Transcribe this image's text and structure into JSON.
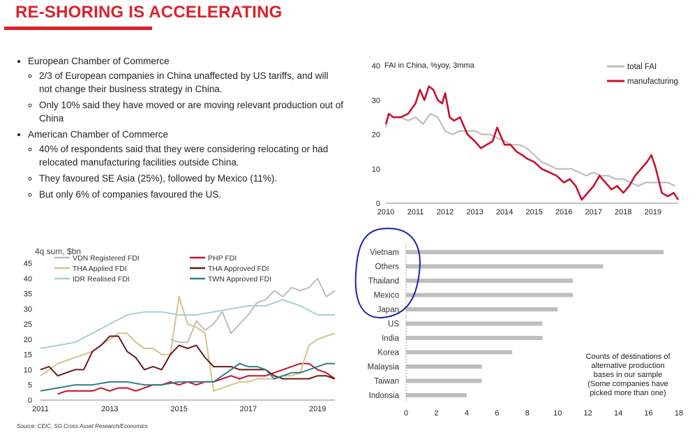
{
  "title": "RE-SHORING IS ACCELERATING",
  "bullets": [
    {
      "text": "European Chamber of Commerce",
      "sub": [
        "2/3 of European companies in China unaffected by US tariffs, and will not change their business strategy in China.",
        "Only 10% said they have moved or are moving relevant production out of China"
      ]
    },
    {
      "text": "American Chamber of Commerce",
      "sub": [
        "40% of respondents said that they were considering relocating or had relocated manufacturing facilities outside China.",
        "They favoured SE Asia (25%), followed by Mexico (11%).",
        "But only 6% of companies favoured the US."
      ]
    }
  ],
  "source": "Source: CEIC, SG Cross Asset Research/Economics",
  "colors": {
    "red": "#c8102e",
    "grey": "#bdbdbd",
    "tan": "#d4c48a",
    "darkred": "#6b1a1a",
    "lightblue": "#a9cfd4",
    "teal": "#2f7f86",
    "bar": "#bfbdbd",
    "circle": "#1626a8"
  },
  "chart_data": [
    {
      "type": "line",
      "title": "FAI in China, %yoy, 3mma",
      "x_ticks": [
        "2010",
        "2011",
        "2012",
        "2013",
        "2014",
        "2015",
        "2016",
        "2017",
        "2018",
        "2019"
      ],
      "y_ticks": [
        0,
        10,
        20,
        30,
        40
      ],
      "ylim": [
        0,
        40
      ],
      "xlim": [
        2010,
        2019.85
      ],
      "legend": [
        "total FAI",
        "manufacturing"
      ],
      "series": [
        {
          "name": "total FAI",
          "color": "#bdbdbd",
          "x": [
            2010,
            2010.1,
            2010.25,
            2010.5,
            2010.75,
            2011,
            2011.25,
            2011.5,
            2011.75,
            2012,
            2012.25,
            2012.5,
            2012.75,
            2013,
            2013.25,
            2013.5,
            2013.75,
            2014,
            2014.25,
            2014.5,
            2014.75,
            2015,
            2015.25,
            2015.5,
            2015.75,
            2016,
            2016.25,
            2016.5,
            2016.75,
            2017,
            2017.25,
            2017.5,
            2017.75,
            2018,
            2018.25,
            2018.5,
            2018.75,
            2019,
            2019.25,
            2019.5,
            2019.75
          ],
          "y": [
            22,
            26,
            25,
            25,
            24,
            25,
            23,
            26,
            25,
            21,
            20,
            21,
            21,
            21,
            20,
            20,
            19,
            18,
            17,
            17,
            16,
            14,
            12,
            11,
            10,
            10,
            10,
            9,
            8,
            9,
            8,
            8,
            7,
            7,
            6,
            5,
            6,
            6,
            6,
            6,
            5
          ]
        },
        {
          "name": "manufacturing",
          "color": "#c8102e",
          "x": [
            2010,
            2010.1,
            2010.25,
            2010.5,
            2010.75,
            2011,
            2011.15,
            2011.3,
            2011.45,
            2011.6,
            2011.75,
            2011.9,
            2012,
            2012.15,
            2012.3,
            2012.5,
            2012.75,
            2013,
            2013.2,
            2013.4,
            2013.6,
            2013.75,
            2013.9,
            2014,
            2014.2,
            2014.4,
            2014.6,
            2014.75,
            2015,
            2015.25,
            2015.5,
            2015.75,
            2016,
            2016.2,
            2016.4,
            2016.6,
            2016.8,
            2017,
            2017.2,
            2017.4,
            2017.6,
            2017.8,
            2018,
            2018.2,
            2018.4,
            2018.6,
            2018.8,
            2018.95,
            2019.1,
            2019.3,
            2019.5,
            2019.7,
            2019.85
          ],
          "y": [
            23,
            26,
            25,
            25,
            26,
            29,
            33,
            30,
            34,
            33,
            30,
            29,
            32,
            25,
            24,
            25,
            20,
            18,
            16,
            17,
            18,
            22,
            19,
            17,
            17,
            15,
            14,
            13,
            12,
            10,
            9,
            8,
            6,
            7,
            5,
            1,
            3,
            5,
            8,
            6,
            4,
            5,
            3,
            5,
            8,
            10,
            12,
            14,
            10,
            3,
            2,
            3,
            1
          ]
        }
      ]
    },
    {
      "type": "line",
      "title": "4q sum, $bn",
      "x_ticks": [
        "2011",
        "2013",
        "2015",
        "2017",
        "2019"
      ],
      "y_ticks": [
        0,
        5,
        10,
        15,
        20,
        25,
        30,
        35,
        40,
        45
      ],
      "ylim": [
        0,
        45
      ],
      "xlim": [
        2011,
        2019.5
      ],
      "legend": [
        "VDN Registered FDI",
        "PHP FDI",
        "THA Applied FDI",
        "THA Approved FDI",
        "IDR Realised FDI",
        "TWN Approved FDI"
      ],
      "series": [
        {
          "name": "VDN Registered FDI",
          "color": "#bdbdbd",
          "x": [
            2014.75,
            2015,
            2015.25,
            2015.5,
            2015.75,
            2016,
            2016.25,
            2016.5,
            2016.75,
            2017,
            2017.25,
            2017.5,
            2017.75,
            2018,
            2018.25,
            2018.5,
            2018.75,
            2019,
            2019.25,
            2019.5
          ],
          "y": [
            20,
            19,
            19,
            26,
            23,
            25,
            29,
            22,
            25,
            28,
            32,
            33,
            36,
            34,
            37,
            36,
            37,
            40,
            34,
            36
          ]
        },
        {
          "name": "PHP FDI",
          "color": "#c8102e",
          "x": [
            2011.5,
            2011.75,
            2012,
            2012.25,
            2012.5,
            2012.75,
            2013,
            2013.25,
            2013.5,
            2013.75,
            2014,
            2014.25,
            2014.5,
            2014.75,
            2015,
            2015.25,
            2015.5,
            2015.75,
            2016,
            2016.25,
            2016.5,
            2016.75,
            2017,
            2017.25,
            2017.5,
            2017.75,
            2018,
            2018.25,
            2018.5,
            2018.75,
            2019,
            2019.25,
            2019.5
          ],
          "y": [
            2,
            3,
            3,
            3,
            3,
            4,
            3,
            4,
            4,
            3,
            4,
            5,
            5,
            6,
            5,
            6,
            5,
            6,
            6,
            7,
            8,
            7,
            8,
            8,
            8,
            9,
            10,
            11,
            12,
            12,
            10,
            9,
            7
          ]
        },
        {
          "name": "THA Applied FDI",
          "color": "#d4c48a",
          "x": [
            2011,
            2011.25,
            2011.5,
            2011.75,
            2012,
            2012.25,
            2012.5,
            2012.75,
            2013,
            2013.25,
            2013.5,
            2013.75,
            2014,
            2014.25,
            2014.5,
            2014.75,
            2015,
            2015.25,
            2015.5,
            2015.75,
            2016,
            2016.25,
            2016.5,
            2016.75,
            2017,
            2017.25,
            2017.5,
            2017.75,
            2018,
            2018.25,
            2018.5,
            2018.75,
            2019,
            2019.25,
            2019.5
          ],
          "y": [
            8,
            10,
            12,
            13,
            14,
            15,
            16,
            18,
            20,
            22,
            22,
            19,
            17,
            17,
            15,
            15,
            34,
            25,
            24,
            22,
            3,
            4,
            5,
            6,
            6,
            7,
            7,
            7,
            8,
            8,
            9,
            18,
            20,
            21,
            22
          ]
        },
        {
          "name": "THA Approved FDI",
          "color": "#6b1a1a",
          "x": [
            2011,
            2011.25,
            2011.5,
            2011.75,
            2012,
            2012.25,
            2012.5,
            2012.75,
            2013,
            2013.25,
            2013.5,
            2013.75,
            2014,
            2014.25,
            2014.5,
            2014.75,
            2015,
            2015.25,
            2015.5,
            2015.75,
            2016,
            2016.25,
            2016.5,
            2016.75,
            2017,
            2017.25,
            2017.5,
            2017.75,
            2018,
            2018.25,
            2018.5,
            2018.75,
            2019,
            2019.25,
            2019.5
          ],
          "y": [
            10,
            11,
            8,
            9,
            10,
            10,
            16,
            18,
            21,
            21,
            16,
            14,
            10,
            11,
            10,
            15,
            18,
            17,
            18,
            14,
            11,
            11,
            11,
            10,
            10,
            10,
            10,
            8,
            7,
            7,
            7,
            7,
            8,
            8,
            7
          ]
        },
        {
          "name": "IDR Realised FDI",
          "color": "#a9cfd4",
          "x": [
            2011,
            2011.5,
            2012,
            2012.5,
            2013,
            2013.5,
            2014,
            2014.5,
            2015,
            2015.5,
            2016,
            2016.5,
            2017,
            2017.5,
            2018,
            2018.5,
            2019,
            2019.5
          ],
          "y": [
            17,
            18,
            19,
            22,
            25,
            28,
            29,
            29,
            28,
            28,
            29,
            30,
            31,
            31,
            33,
            31,
            28,
            28
          ]
        },
        {
          "name": "TWN Approved FDI",
          "color": "#2f7f86",
          "x": [
            2011,
            2011.5,
            2012,
            2012.5,
            2013,
            2013.5,
            2014,
            2014.5,
            2015,
            2015.5,
            2016,
            2016.25,
            2016.5,
            2016.75,
            2017,
            2017.25,
            2017.5,
            2017.75,
            2018,
            2018.25,
            2018.5,
            2018.75,
            2019,
            2019.25,
            2019.5
          ],
          "y": [
            3,
            4,
            5,
            5,
            6,
            6,
            5,
            5,
            6,
            6,
            6,
            8,
            10,
            12,
            11,
            11,
            10,
            7,
            8,
            9,
            9,
            10,
            11,
            12,
            12
          ]
        }
      ]
    },
    {
      "type": "bar",
      "orientation": "horizontal",
      "categories": [
        "Vietnam",
        "Others",
        "Thailand",
        "Mexico",
        "Japan",
        "US",
        "India",
        "Korea",
        "Malaysia",
        "Taiwan",
        "Indonsia"
      ],
      "values": [
        17,
        13,
        11,
        11,
        10,
        9,
        9,
        7,
        5,
        5,
        4
      ],
      "x_ticks": [
        0,
        2,
        4,
        6,
        8,
        10,
        12,
        14,
        16,
        18
      ],
      "xlim": [
        0,
        18
      ],
      "annotation": [
        "Counts of destinations of",
        "alternative production",
        "bases in our sample",
        "(Some companies have",
        "picked more than one)"
      ],
      "highlight": [
        "Vietnam",
        "Others",
        "Thailand",
        "Mexico",
        "Japan"
      ]
    }
  ]
}
